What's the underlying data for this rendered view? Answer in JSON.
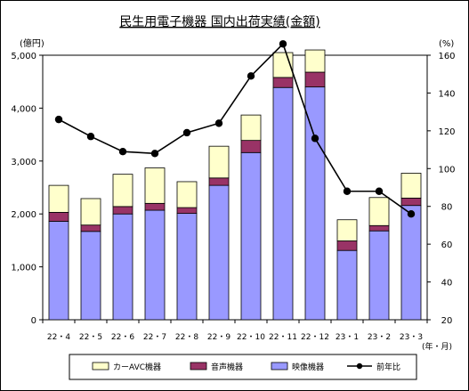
{
  "chart_data": {
    "type": "bar",
    "title": "民生用電子機器 国内出荷実績(金額)",
    "y_left_unit": "(億円)",
    "y_right_unit": "(%)",
    "x_unit": "(年・月)",
    "categories": [
      "22・4",
      "22・5",
      "22・6",
      "22・7",
      "22・8",
      "22・9",
      "22・10",
      "22・11",
      "22・12",
      "23・1",
      "23・2",
      "23・3"
    ],
    "y_left": {
      "min": 0,
      "max": 5000,
      "ticks": [
        0,
        1000,
        2000,
        3000,
        4000,
        5000
      ],
      "tick_labels": [
        "0",
        "1,000",
        "2,000",
        "3,000",
        "4,000",
        "5,000"
      ]
    },
    "y_right": {
      "min": 20,
      "max": 160,
      "ticks": [
        20,
        40,
        60,
        80,
        100,
        120,
        140,
        160
      ],
      "tick_labels": [
        "20",
        "40",
        "60",
        "80",
        "100",
        "120",
        "140",
        "160"
      ]
    },
    "grid": false,
    "legend_position": "bottom",
    "series": [
      {
        "name": "映像機器",
        "kind": "bar",
        "stack": "total",
        "color": "#9999ff",
        "values": [
          1860,
          1670,
          2000,
          2070,
          2010,
          2540,
          3160,
          4390,
          4400,
          1310,
          1680,
          2160
        ]
      },
      {
        "name": "音声機器",
        "kind": "bar",
        "stack": "total",
        "color": "#993366",
        "values": [
          170,
          120,
          140,
          130,
          110,
          140,
          230,
          190,
          280,
          180,
          100,
          140
        ]
      },
      {
        "name": "カーAVC機器",
        "kind": "bar",
        "stack": "total",
        "color": "#ffffcc",
        "values": [
          510,
          500,
          610,
          670,
          490,
          600,
          480,
          470,
          420,
          400,
          530,
          470
        ]
      },
      {
        "name": "前年比",
        "kind": "line",
        "axis": "right",
        "color": "#000000",
        "values": [
          126,
          117,
          109,
          108,
          119,
          124,
          149,
          166,
          116,
          88,
          88,
          76
        ]
      }
    ]
  }
}
